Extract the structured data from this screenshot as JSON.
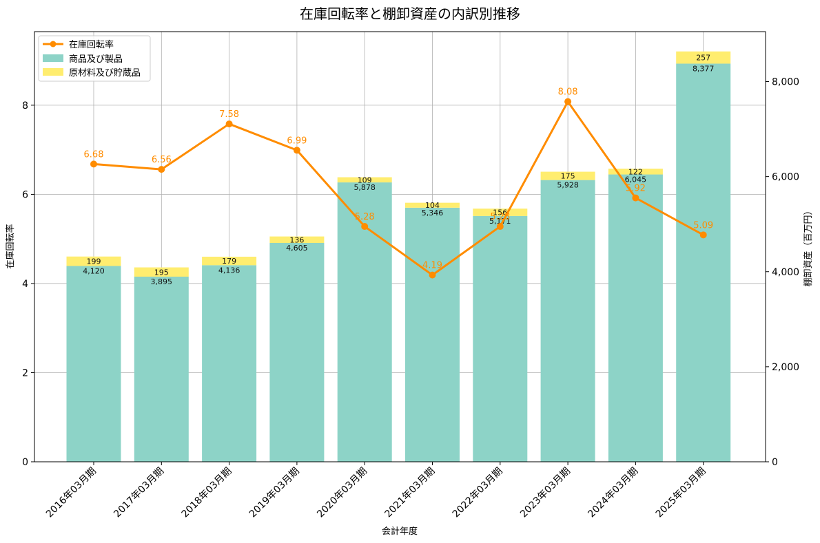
{
  "chart_data": {
    "type": "bar",
    "title": "在庫回転率と棚卸資産の内訳別推移",
    "xlabel": "会計年度",
    "ylabel_left": "在庫回転率",
    "ylabel_right": "棚卸資産（百万円）",
    "categories": [
      "2016年03月期",
      "2017年03月期",
      "2018年03月期",
      "2019年03月期",
      "2020年03月期",
      "2021年03月期",
      "2022年03月期",
      "2023年03月期",
      "2024年03月期",
      "2025年03月期"
    ],
    "series": [
      {
        "name": "在庫回転率",
        "type": "line",
        "axis": "left",
        "color": "#ff8c00",
        "values": [
          6.68,
          6.56,
          7.58,
          6.99,
          5.28,
          4.19,
          5.28,
          8.08,
          5.92,
          5.09
        ],
        "labels": [
          "6.68",
          "6.56",
          "7.58",
          "6.99",
          "5.28",
          "4.19",
          "5.28",
          "8.08",
          "5.92",
          "5.09"
        ]
      },
      {
        "name": "商品及び製品",
        "type": "bar",
        "axis": "right",
        "color": "#8dd3c7",
        "values": [
          4120,
          3895,
          4136,
          4605,
          5878,
          5346,
          5171,
          5928,
          6045,
          8377
        ],
        "labels": [
          "4,120",
          "3,895",
          "4,136",
          "4,605",
          "5,878",
          "5,346",
          "5,171",
          "5,928",
          "6,045",
          "8,377"
        ]
      },
      {
        "name": "原材料及び貯蔵品",
        "type": "bar",
        "axis": "right",
        "color": "#ffed6f",
        "values": [
          199,
          195,
          179,
          136,
          109,
          104,
          156,
          175,
          122,
          257
        ],
        "labels": [
          "199",
          "195",
          "179",
          "136",
          "109",
          "104",
          "156",
          "175",
          "122",
          "257"
        ]
      }
    ],
    "ylim_left": [
      0,
      9.65
    ],
    "ylim_right": [
      0,
      9050
    ],
    "yticks_left": [
      "0",
      "2",
      "4",
      "6",
      "8"
    ],
    "yticks_right": [
      "0",
      "2,000",
      "4,000",
      "6,000",
      "8,000"
    ],
    "yticks_left_values": [
      0,
      2,
      4,
      6,
      8
    ],
    "yticks_right_values": [
      0,
      2000,
      4000,
      6000,
      8000
    ],
    "grid": true,
    "legend_position": "top-left"
  }
}
